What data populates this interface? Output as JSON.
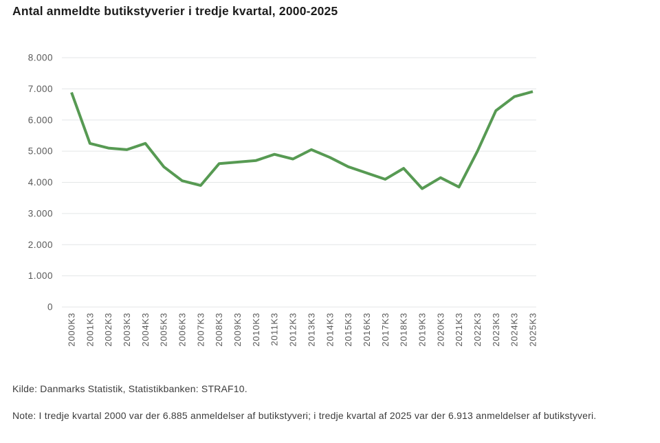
{
  "title": "Antal anmeldte butikstyverier i tredje kvartal, 2000-2025",
  "footer": {
    "source": "Kilde: Danmarks Statistik, Statistikbanken: STRAF10.",
    "note": "Note: I tredje kvartal 2000 var der 6.885 anmeldelser af butikstyveri; i tredje kvartal af 2025 var der 6.913 anmeldelser af butikstyveri."
  },
  "chart_data": {
    "type": "line",
    "title": "Antal anmeldte butikstyverier i tredje kvartal, 2000-2025",
    "categories": [
      "2000K3",
      "2001K3",
      "2002K3",
      "2003K3",
      "2004K3",
      "2005K3",
      "2006K3",
      "2007K3",
      "2008K3",
      "2009K3",
      "2010K3",
      "2011K3",
      "2012K3",
      "2013K3",
      "2014K3",
      "2015K3",
      "2016K3",
      "2017K3",
      "2018K3",
      "2019K3",
      "2020K3",
      "2021K3",
      "2022K3",
      "2023K3",
      "2024K3",
      "2025K3"
    ],
    "values": [
      6885,
      5250,
      5100,
      5050,
      5250,
      4500,
      4050,
      3900,
      4600,
      4650,
      4700,
      4900,
      4750,
      5050,
      4800,
      4500,
      4300,
      4100,
      4450,
      3800,
      4150,
      3850,
      5000,
      6300,
      6750,
      6913
    ],
    "y_tick_labels": [
      "0",
      "1.000",
      "2.000",
      "3.000",
      "4.000",
      "5.000",
      "6.000",
      "7.000",
      "8.000"
    ],
    "y_tick_values": [
      0,
      1000,
      2000,
      3000,
      4000,
      5000,
      6000,
      7000,
      8000
    ],
    "ylim": [
      0,
      8000
    ],
    "xlabel": "",
    "ylabel": "",
    "grid": true,
    "legend": "none",
    "line_color": "#579a53",
    "grid_color": "#e3e6e7",
    "label_color": "#595959"
  }
}
